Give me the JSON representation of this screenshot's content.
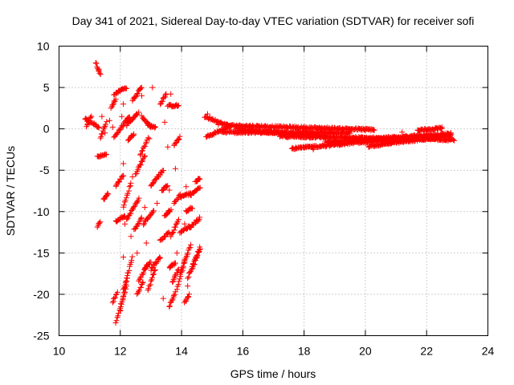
{
  "chart_data": {
    "type": "scatter",
    "title": "Day 341 of 2021, Sidereal Day-to-day VTEC variation (SDTVAR) for receiver sofi",
    "xlabel": "GPS time / hours",
    "ylabel": "SDTVAR / TECUs",
    "xlim": [
      10,
      24
    ],
    "ylim": [
      -25,
      10
    ],
    "xticks": [
      10,
      12,
      14,
      16,
      18,
      20,
      22,
      24
    ],
    "yticks": [
      10,
      5,
      0,
      -5,
      -10,
      -15,
      -20,
      -25
    ],
    "grid": true,
    "marker": "+",
    "color": "#ff0000",
    "segments": [
      {
        "x0": 10.85,
        "x1": 11.0,
        "y0": 1.2,
        "y1": 0.8
      },
      {
        "x0": 10.9,
        "x1": 11.05,
        "y0": 0.2,
        "y1": 1.6
      },
      {
        "x0": 11.05,
        "x1": 11.3,
        "y0": 0.8,
        "y1": 0.2
      },
      {
        "x0": 11.2,
        "x1": 11.35,
        "y0": 8.0,
        "y1": 6.6
      },
      {
        "x0": 11.25,
        "x1": 11.55,
        "y0": -3.4,
        "y1": -3.1
      },
      {
        "x0": 11.35,
        "x1": 11.55,
        "y0": -1.2,
        "y1": 0.8
      },
      {
        "x0": 11.45,
        "x1": 11.6,
        "y0": -8.6,
        "y1": -7.8
      },
      {
        "x0": 11.25,
        "x1": 11.35,
        "y0": -11.8,
        "y1": -11.2
      },
      {
        "x0": 11.7,
        "x1": 11.85,
        "y0": 2.5,
        "y1": 3.6
      },
      {
        "x0": 11.8,
        "x1": 12.2,
        "y0": 4.2,
        "y1": 5.0
      },
      {
        "x0": 11.8,
        "x1": 12.3,
        "y0": -1.0,
        "y1": 1.5
      },
      {
        "x0": 11.85,
        "x1": 12.1,
        "y0": -7.0,
        "y1": -5.6
      },
      {
        "x0": 11.85,
        "x1": 12.15,
        "y0": -11.2,
        "y1": -10.5
      },
      {
        "x0": 11.75,
        "x1": 11.9,
        "y0": -21.0,
        "y1": -19.8
      },
      {
        "x0": 11.85,
        "x1": 12.2,
        "y0": -23.5,
        "y1": -19.0
      },
      {
        "x0": 12.0,
        "x1": 12.25,
        "y0": -22.0,
        "y1": -17.5
      },
      {
        "x0": 12.1,
        "x1": 12.4,
        "y0": -19.5,
        "y1": -15.5
      },
      {
        "x0": 12.1,
        "x1": 12.35,
        "y0": -9.5,
        "y1": -6.5
      },
      {
        "x0": 12.2,
        "x1": 12.6,
        "y0": -11.0,
        "y1": -8.5
      },
      {
        "x0": 12.2,
        "x1": 12.55,
        "y0": 0.5,
        "y1": 1.8
      },
      {
        "x0": 12.25,
        "x1": 12.45,
        "y0": -1.3,
        "y1": -0.6
      },
      {
        "x0": 12.4,
        "x1": 12.7,
        "y0": 3.5,
        "y1": 5.0
      },
      {
        "x0": 12.45,
        "x1": 12.7,
        "y0": -12.2,
        "y1": -10.8
      },
      {
        "x0": 12.5,
        "x1": 12.8,
        "y0": -5.5,
        "y1": -3.2
      },
      {
        "x0": 12.55,
        "x1": 12.75,
        "y0": -20.0,
        "y1": -18.5
      },
      {
        "x0": 12.6,
        "x1": 12.85,
        "y0": -18.5,
        "y1": -16.5
      },
      {
        "x0": 12.65,
        "x1": 12.9,
        "y0": -3.2,
        "y1": -1.2
      },
      {
        "x0": 12.7,
        "x1": 13.0,
        "y0": 1.5,
        "y1": 0.2
      },
      {
        "x0": 12.75,
        "x1": 13.1,
        "y0": -11.5,
        "y1": -9.8
      },
      {
        "x0": 12.8,
        "x1": 13.0,
        "y0": -17.0,
        "y1": -16.0
      },
      {
        "x0": 12.9,
        "x1": 13.15,
        "y0": 0.5,
        "y1": 0.2
      },
      {
        "x0": 12.9,
        "x1": 13.15,
        "y0": -19.5,
        "y1": -17.0
      },
      {
        "x0": 13.0,
        "x1": 13.3,
        "y0": -17.0,
        "y1": -15.5
      },
      {
        "x0": 13.0,
        "x1": 13.4,
        "y0": -6.8,
        "y1": -5.0
      },
      {
        "x0": 13.3,
        "x1": 13.5,
        "y0": 3.0,
        "y1": 4.2
      },
      {
        "x0": 13.3,
        "x1": 13.6,
        "y0": -13.5,
        "y1": -12.5
      },
      {
        "x0": 13.35,
        "x1": 13.55,
        "y0": -7.5,
        "y1": -6.8
      },
      {
        "x0": 13.45,
        "x1": 13.65,
        "y0": -10.5,
        "y1": -9.8
      },
      {
        "x0": 13.55,
        "x1": 13.9,
        "y0": 2.8,
        "y1": 2.8
      },
      {
        "x0": 13.6,
        "x1": 13.8,
        "y0": -16.8,
        "y1": -16.2
      },
      {
        "x0": 13.6,
        "x1": 13.8,
        "y0": -21.5,
        "y1": -19.8
      },
      {
        "x0": 13.7,
        "x1": 13.9,
        "y0": -18.5,
        "y1": -17.0
      },
      {
        "x0": 13.65,
        "x1": 13.9,
        "y0": -13.0,
        "y1": -11.0
      },
      {
        "x0": 13.75,
        "x1": 13.95,
        "y0": -9.0,
        "y1": -8.0
      },
      {
        "x0": 13.75,
        "x1": 13.95,
        "y0": -2.0,
        "y1": -1.0
      },
      {
        "x0": 13.85,
        "x1": 14.1,
        "y0": -19.5,
        "y1": -16.0
      },
      {
        "x0": 13.95,
        "x1": 14.3,
        "y0": -17.5,
        "y1": -14.0
      },
      {
        "x0": 13.95,
        "x1": 14.3,
        "y0": -8.2,
        "y1": -7.8
      },
      {
        "x0": 13.95,
        "x1": 14.25,
        "y0": -12.5,
        "y1": -11.8
      },
      {
        "x0": 14.1,
        "x1": 14.25,
        "y0": -21.0,
        "y1": -20.0
      },
      {
        "x0": 14.15,
        "x1": 14.35,
        "y0": -10.0,
        "y1": -9.5
      },
      {
        "x0": 14.2,
        "x1": 14.6,
        "y0": -18.0,
        "y1": -14.3
      },
      {
        "x0": 14.25,
        "x1": 14.6,
        "y0": -12.0,
        "y1": -10.8
      },
      {
        "x0": 14.3,
        "x1": 14.6,
        "y0": -8.0,
        "y1": -7.0
      },
      {
        "x0": 14.35,
        "x1": 14.6,
        "y0": -17.0,
        "y1": -14.5
      },
      {
        "x0": 14.45,
        "x1": 14.6,
        "y0": -6.5,
        "y1": -6.0
      },
      {
        "x0": 14.75,
        "x1": 15.6,
        "y0": 1.5,
        "y1": 0.3
      },
      {
        "x0": 14.8,
        "x1": 15.5,
        "y0": -1.0,
        "y1": 0.2
      },
      {
        "x0": 15.5,
        "x1": 20.3,
        "y0": 0.4,
        "y1": -0.1
      },
      {
        "x0": 15.3,
        "x1": 19.5,
        "y0": -0.4,
        "y1": -0.5
      },
      {
        "x0": 15.8,
        "x1": 18.7,
        "y0": -0.1,
        "y1": -0.9
      },
      {
        "x0": 17.2,
        "x1": 22.9,
        "y0": -0.9,
        "y1": -1.3
      },
      {
        "x0": 17.6,
        "x1": 19.3,
        "y0": -2.4,
        "y1": -1.8
      },
      {
        "x0": 19.3,
        "x1": 22.3,
        "y0": -1.8,
        "y1": -0.9
      },
      {
        "x0": 18.7,
        "x1": 22.8,
        "y0": -1.6,
        "y1": -0.6
      },
      {
        "x0": 20.1,
        "x1": 22.8,
        "y0": -2.1,
        "y1": -0.8
      },
      {
        "x0": 21.7,
        "x1": 22.5,
        "y0": -0.2,
        "y1": 0.1
      }
    ],
    "isolated_points": [
      {
        "x": 11.3,
        "y": 7.2
      },
      {
        "x": 11.4,
        "y": 1.5
      },
      {
        "x": 11.5,
        "y": -0.5
      },
      {
        "x": 11.65,
        "y": 1.0
      },
      {
        "x": 11.75,
        "y": 0.2
      },
      {
        "x": 12.05,
        "y": 1.5
      },
      {
        "x": 12.1,
        "y": 3.0
      },
      {
        "x": 12.1,
        "y": -4.2
      },
      {
        "x": 12.1,
        "y": -15.5
      },
      {
        "x": 12.15,
        "y": -11.5
      },
      {
        "x": 12.35,
        "y": -13.0
      },
      {
        "x": 12.4,
        "y": -5.8
      },
      {
        "x": 12.55,
        "y": -15.0
      },
      {
        "x": 12.6,
        "y": 2.0
      },
      {
        "x": 12.65,
        "y": 4.8
      },
      {
        "x": 12.7,
        "y": 4.0
      },
      {
        "x": 12.8,
        "y": -9.5
      },
      {
        "x": 12.85,
        "y": -13.8
      },
      {
        "x": 12.95,
        "y": -1.2
      },
      {
        "x": 13.05,
        "y": 5.0
      },
      {
        "x": 13.2,
        "y": -9.0
      },
      {
        "x": 13.25,
        "y": -5.8
      },
      {
        "x": 13.4,
        "y": -20.5
      },
      {
        "x": 13.45,
        "y": 0.8
      },
      {
        "x": 13.55,
        "y": -2.2
      },
      {
        "x": 13.6,
        "y": -7.4
      },
      {
        "x": 13.65,
        "y": 4.2
      },
      {
        "x": 13.8,
        "y": -4.8
      },
      {
        "x": 13.85,
        "y": -15.0
      },
      {
        "x": 14.1,
        "y": -11.5
      },
      {
        "x": 14.15,
        "y": -7.0
      },
      {
        "x": 14.2,
        "y": -19.0
      },
      {
        "x": 14.5,
        "y": -11.0
      },
      {
        "x": 14.55,
        "y": -6.0
      },
      {
        "x": 14.85,
        "y": 1.8
      },
      {
        "x": 15.2,
        "y": 0.5
      },
      {
        "x": 18.3,
        "y": -2.5
      },
      {
        "x": 20.0,
        "y": -0.2
      },
      {
        "x": 21.2,
        "y": -0.4
      },
      {
        "x": 22.0,
        "y": -0.3
      },
      {
        "x": 22.5,
        "y": 0.2
      }
    ]
  }
}
